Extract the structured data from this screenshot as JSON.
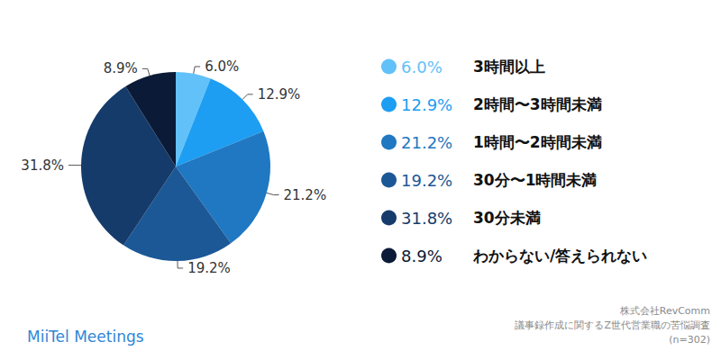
{
  "chart_data": {
    "type": "pie",
    "categories": [
      "3時間以上",
      "2時間〜3時間未満",
      "1時間〜2時間未満",
      "30分〜1時間未満",
      "30分未満",
      "わからない/答えられない"
    ],
    "values": [
      6.0,
      12.9,
      21.2,
      19.2,
      31.8,
      8.9
    ],
    "value_labels": [
      "6.0%",
      "12.9%",
      "21.2%",
      "19.2%",
      "31.8%",
      "8.9%"
    ],
    "colors": [
      "#62c1f8",
      "#1d9ef2",
      "#1f78c1",
      "#1c5896",
      "#153b6b",
      "#0b1a36"
    ],
    "data_labels": true,
    "legend": "right",
    "annotations": [
      "MiiTel Meetings",
      "株式会社RevComm",
      "議事録作成に関するZ世代営業職の苦悩調査",
      "(n=302)"
    ]
  }
}
